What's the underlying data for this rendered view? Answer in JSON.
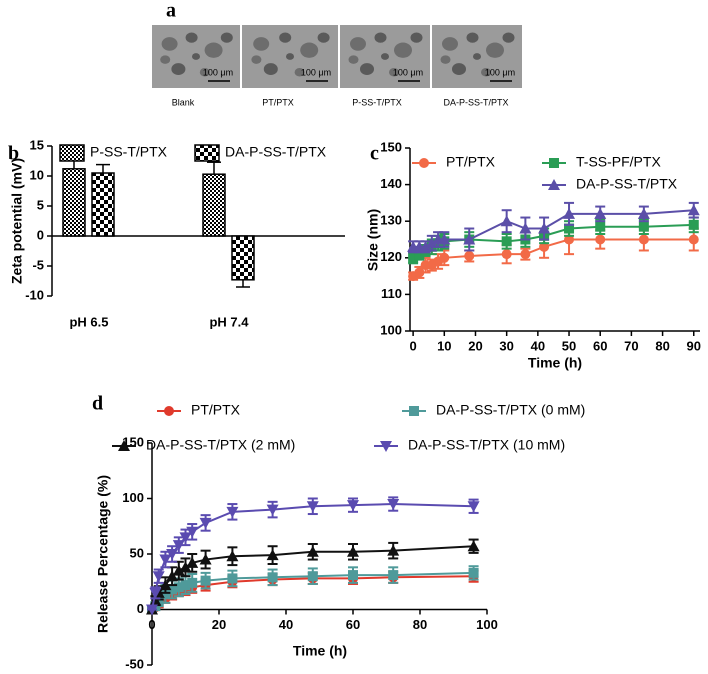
{
  "panel_a": {
    "label": "a",
    "images": [
      {
        "caption": "Blank",
        "scale_bar": "100 μm"
      },
      {
        "caption": "PT/PTX",
        "scale_bar": "100 μm"
      },
      {
        "caption": "P-SS-T/PTX",
        "scale_bar": "100 μm"
      },
      {
        "caption": "DA-P-SS-T/PTX",
        "scale_bar": "100 μm"
      }
    ]
  },
  "chart_data": [
    {
      "type": "bar",
      "label": "b",
      "ylabel": "Zeta potential (mV)",
      "categories": [
        "pH 6.5",
        "pH 7.4"
      ],
      "series": [
        {
          "name": "P-SS-T/PTX",
          "color": "#000000",
          "pattern": "fine-check",
          "values": [
            11.2,
            10.3
          ],
          "errors": [
            1.8,
            2.0
          ]
        },
        {
          "name": "DA-P-SS-T/PTX",
          "color": "#000000",
          "pattern": "coarse-check",
          "values": [
            10.5,
            -7.3
          ],
          "errors": [
            1.4,
            1.2
          ]
        }
      ],
      "ylim": [
        -10,
        15
      ],
      "yticks": [
        -10,
        -5,
        0,
        5,
        10,
        15
      ]
    },
    {
      "type": "line",
      "label": "c",
      "ylabel": "Size (nm)",
      "xlabel": "Time (h)",
      "x": [
        0,
        2,
        4,
        6,
        8,
        10,
        18,
        30,
        36,
        42,
        50,
        60,
        74,
        90
      ],
      "series": [
        {
          "name": "PT/PTX",
          "color": "#f26a47",
          "marker": "circle",
          "values": [
            115,
            116,
            118,
            118,
            119,
            120,
            120.5,
            121,
            121,
            123,
            125,
            125,
            125,
            125
          ],
          "errors": [
            1,
            1.5,
            2,
            1.5,
            2,
            2,
            1.5,
            2.5,
            1.5,
            3,
            4,
            2.5,
            3,
            3
          ]
        },
        {
          "name": "T-SS-PF/PTX",
          "color": "#2a9d55",
          "marker": "square",
          "values": [
            120,
            121,
            122,
            123,
            124,
            124.5,
            125,
            124.5,
            125,
            126,
            128,
            128.5,
            128.5,
            129
          ],
          "errors": [
            1.5,
            1.5,
            1.5,
            2,
            2,
            2,
            2,
            2,
            2,
            2,
            2,
            2,
            2,
            2
          ]
        },
        {
          "name": "DA-P-SS-T/PTX",
          "color": "#5b4fa8",
          "marker": "triangle-up",
          "values": [
            123,
            123,
            123,
            124,
            125,
            125,
            125,
            130,
            128,
            128,
            132,
            132,
            132,
            133
          ],
          "errors": [
            1.5,
            1.5,
            1.5,
            2,
            2,
            2,
            3,
            3,
            3,
            3,
            3,
            2,
            2,
            2
          ]
        }
      ],
      "xlim": [
        -1,
        92
      ],
      "xticks": [
        0,
        10,
        20,
        30,
        40,
        50,
        60,
        70,
        80,
        90
      ],
      "ylim": [
        100,
        150
      ],
      "yticks": [
        100,
        110,
        120,
        130,
        140,
        150
      ]
    },
    {
      "type": "line",
      "label": "d",
      "ylabel": "Release Percentage (%)",
      "xlabel": "Time (h)",
      "x": [
        0,
        1,
        2,
        4,
        6,
        8,
        10,
        12,
        16,
        24,
        36,
        48,
        60,
        72,
        96
      ],
      "series": [
        {
          "name": "PT/PTX",
          "color": "#e03a2c",
          "marker": "circle",
          "values": [
            0,
            2,
            5,
            10,
            13,
            16,
            18,
            20,
            22,
            25,
            27,
            28,
            28,
            29,
            30
          ],
          "errors": [
            0,
            2,
            3,
            4,
            4,
            4,
            5,
            5,
            5,
            5,
            5,
            5,
            5,
            5,
            5
          ]
        },
        {
          "name": "DA-P-SS-T/PTX (0 mM)",
          "color": "#4f9a9a",
          "marker": "square",
          "values": [
            0,
            3,
            8,
            14,
            18,
            20,
            22,
            24,
            26,
            28,
            29,
            30,
            31,
            31,
            33
          ],
          "errors": [
            0,
            3,
            5,
            8,
            8,
            8,
            8,
            8,
            7,
            7,
            7,
            7,
            7,
            7,
            6
          ]
        },
        {
          "name": "DA-P-SS-T/PTX (2 mM)",
          "color": "#111111",
          "marker": "triangle-up",
          "values": [
            0,
            8,
            15,
            22,
            30,
            35,
            38,
            42,
            45,
            48,
            49,
            52,
            52,
            53,
            57
          ],
          "errors": [
            0,
            4,
            6,
            7,
            8,
            8,
            8,
            8,
            8,
            8,
            8,
            7,
            7,
            7,
            6
          ]
        },
        {
          "name": "DA-P-SS-T/PTX (10 mM)",
          "color": "#5a4bb0",
          "marker": "triangle-down",
          "values": [
            0,
            15,
            30,
            45,
            50,
            58,
            65,
            70,
            78,
            88,
            90,
            93,
            94,
            95,
            93
          ],
          "errors": [
            0,
            5,
            6,
            7,
            7,
            7,
            7,
            7,
            7,
            7,
            7,
            7,
            6,
            6,
            6
          ]
        }
      ],
      "xlim": [
        0,
        100
      ],
      "xticks": [
        0,
        20,
        40,
        60,
        80,
        100
      ],
      "ylim": [
        -50,
        150
      ],
      "yticks": [
        -50,
        0,
        50,
        100,
        150
      ]
    }
  ]
}
